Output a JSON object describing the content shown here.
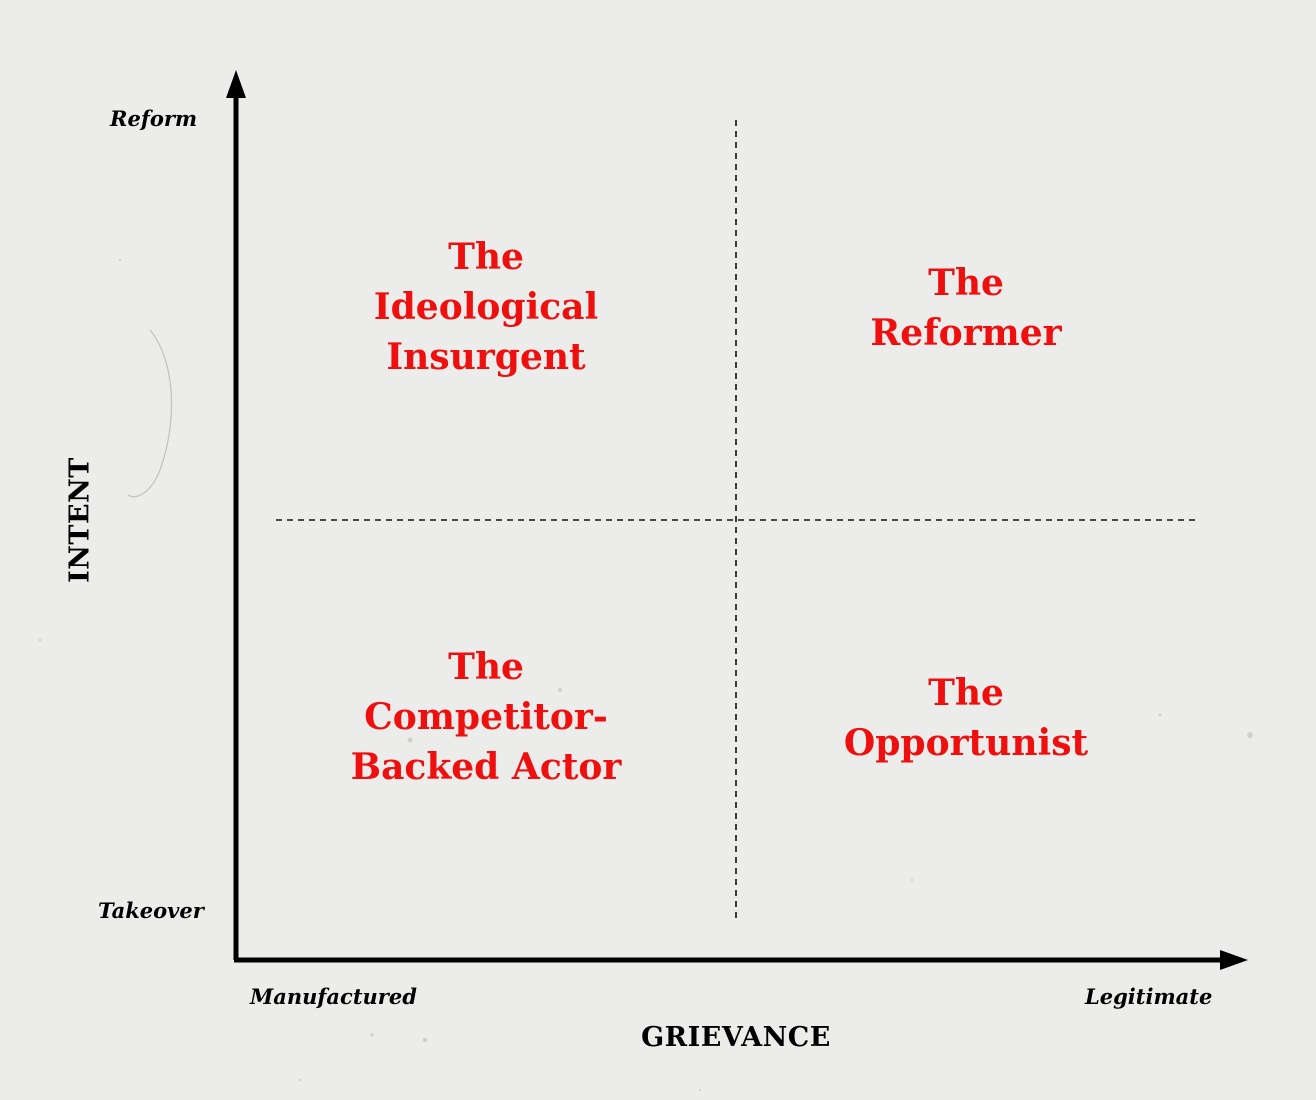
{
  "axes": {
    "y": {
      "title": "INTENT",
      "top_label": "Reform",
      "bottom_label": "Takeover"
    },
    "x": {
      "title": "GRIEVANCE",
      "left_label": "Manufactured",
      "right_label": "Legitimate"
    }
  },
  "quadrants": {
    "top_left": {
      "lines": [
        "The",
        "Ideological",
        "Insurgent"
      ]
    },
    "top_right": {
      "lines": [
        "The",
        "Reformer"
      ]
    },
    "bottom_left": {
      "lines": [
        "The",
        "Competitor-",
        "Backed Actor"
      ]
    },
    "bottom_right": {
      "lines": [
        "The",
        "Opportunist"
      ]
    }
  },
  "colors": {
    "quadrant_text": "#ee0f0f",
    "axis": "#000000",
    "background": "#ececea"
  }
}
